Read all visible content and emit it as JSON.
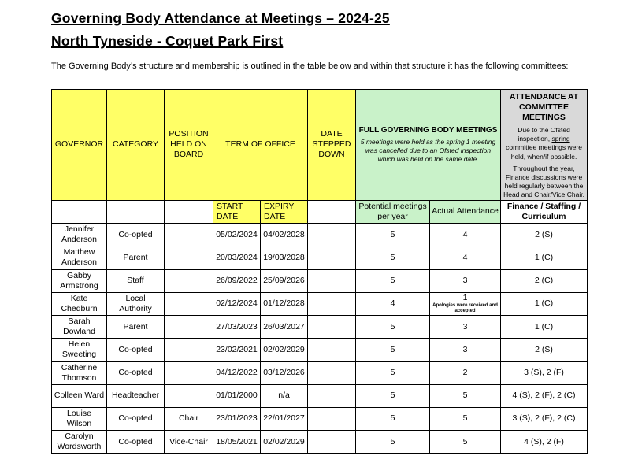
{
  "page": {
    "title_line1": "Governing Body Attendance at Meetings – 2024-25",
    "title_line2": "North Tyneside - Coquet Park First",
    "intro": "The Governing Body’s structure and membership is outlined in the table below and within that structure it has the following committees:"
  },
  "colors": {
    "header_yellow": "#FFFF66",
    "header_green": "#C9F2C9",
    "header_gray": "#D9D9D9",
    "border": "#000000"
  },
  "table": {
    "headers": {
      "governor": "GOVERNOR",
      "category": "CATEGORY",
      "position_held": "POSITION HELD ON BOARD",
      "term_of_office": "TERM OF OFFICE",
      "date_stepped_down": "DATE STEPPED DOWN",
      "full_gb_title": "FULL GOVERNING BODY MEETINGS",
      "full_gb_note": "5 meetings were held as the spring 1 meeting was cancelled due to an Ofsted inspection which was held on the same date.",
      "committee_title": "ATTENDANCE AT COMMITTEE MEETINGS",
      "committee_note1_pre": "Due to the Ofsted inspection, ",
      "committee_note1_underlined": "spring",
      "committee_note1_post": " committee meetings were held, when/if possible.",
      "committee_note2": "Throughout the year, Finance discussions were held regularly between the Head and Chair/Vice Chair.",
      "start_date": "START DATE",
      "expiry_date": "EXPIRY DATE",
      "potential_meetings": "Potential meetings per year",
      "actual_attendance": "Actual Attendance",
      "committee_columns": "Finance / Staffing / Curriculum"
    },
    "rows": [
      {
        "governor": "Jennifer Anderson",
        "category": "Co-opted",
        "position": "",
        "start_date": "05/02/2024",
        "expiry_date": "04/02/2028",
        "date_stepped_down": "",
        "potential_meetings": "5",
        "actual_attendance": "4",
        "attendance_note": "",
        "committee_attendance": "2 (S)"
      },
      {
        "governor": "Matthew Anderson",
        "category": "Parent",
        "position": "",
        "start_date": "20/03/2024",
        "expiry_date": "19/03/2028",
        "date_stepped_down": "",
        "potential_meetings": "5",
        "actual_attendance": "4",
        "attendance_note": "",
        "committee_attendance": "1 (C)"
      },
      {
        "governor": "Gabby Armstrong",
        "category": "Staff",
        "position": "",
        "start_date": "26/09/2022",
        "expiry_date": "25/09/2026",
        "date_stepped_down": "",
        "potential_meetings": "5",
        "actual_attendance": "3",
        "attendance_note": "",
        "committee_attendance": "2 (C)"
      },
      {
        "governor": "Kate Chedburn",
        "category": "Local Authority",
        "position": "",
        "start_date": "02/12/2024",
        "expiry_date": "01/12/2028",
        "date_stepped_down": "",
        "potential_meetings": "4",
        "actual_attendance": "1",
        "attendance_note": "Apologies were received and accepted",
        "committee_attendance": "1 (C)"
      },
      {
        "governor": "Sarah Dowland",
        "category": "Parent",
        "position": "",
        "start_date": "27/03/2023",
        "expiry_date": "26/03/2027",
        "date_stepped_down": "",
        "potential_meetings": "5",
        "actual_attendance": "3",
        "attendance_note": "",
        "committee_attendance": "1 (C)"
      },
      {
        "governor": "Helen Sweeting",
        "category": "Co-opted",
        "position": "",
        "start_date": "23/02/2021",
        "expiry_date": "02/02/2029",
        "date_stepped_down": "",
        "potential_meetings": "5",
        "actual_attendance": "3",
        "attendance_note": "",
        "committee_attendance": "2 (S)"
      },
      {
        "governor": "Catherine Thomson",
        "category": "Co-opted",
        "position": "",
        "start_date": "04/12/2022",
        "expiry_date": "03/12/2026",
        "date_stepped_down": "",
        "potential_meetings": "5",
        "actual_attendance": "2",
        "attendance_note": "",
        "committee_attendance": "3 (S), 2 (F)"
      },
      {
        "governor": "Colleen Ward",
        "category": "Headteacher",
        "position": "",
        "start_date": "01/01/2000",
        "expiry_date": "n/a",
        "date_stepped_down": "",
        "potential_meetings": "5",
        "actual_attendance": "5",
        "attendance_note": "",
        "committee_attendance": "4 (S), 2 (F), 2 (C)"
      },
      {
        "governor": "Louise Wilson",
        "category": "Co-opted",
        "position": "Chair",
        "start_date": "23/01/2023",
        "expiry_date": "22/01/2027",
        "date_stepped_down": "",
        "potential_meetings": "5",
        "actual_attendance": "5",
        "attendance_note": "",
        "committee_attendance": "3 (S), 2 (F), 2 (C)"
      },
      {
        "governor": "Carolyn Wordsworth",
        "category": "Co-opted",
        "position": "Vice-Chair",
        "start_date": "18/05/2021",
        "expiry_date": "02/02/2029",
        "date_stepped_down": "",
        "potential_meetings": "5",
        "actual_attendance": "5",
        "attendance_note": "",
        "committee_attendance": "4 (S), 2 (F)"
      }
    ]
  }
}
